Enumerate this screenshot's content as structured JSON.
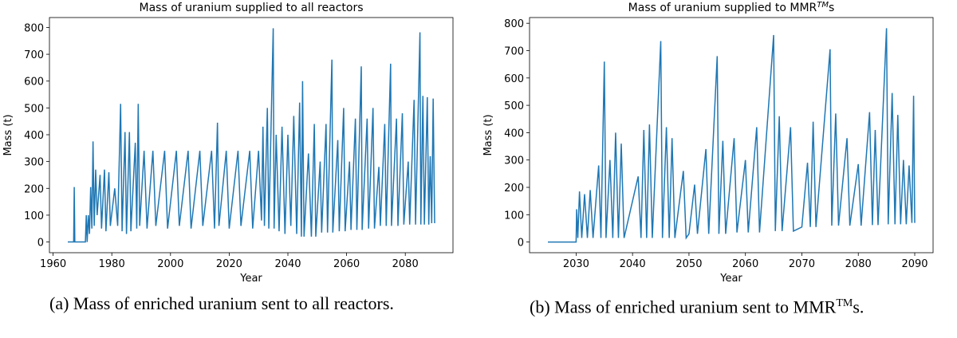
{
  "chart_data": [
    {
      "type": "line",
      "title": "Mass of uranium supplied to all reactors",
      "xlabel": "Year",
      "ylabel": "Mass (t)",
      "xlim": [
        1958.75,
        2096.25
      ],
      "ylim": [
        -40,
        837
      ],
      "xticks": [
        1960,
        1980,
        2000,
        2020,
        2040,
        2060,
        2080
      ],
      "yticks": [
        0,
        100,
        200,
        300,
        400,
        500,
        600,
        700,
        800
      ],
      "x": [
        1965,
        1967,
        1967.2,
        1967.4,
        1971,
        1971.3,
        1971.6,
        1972,
        1972.4,
        1972.8,
        1973.2,
        1973.6,
        1974,
        1974.5,
        1975,
        1976,
        1976.5,
        1977.5,
        1978,
        1979,
        1979.5,
        1981,
        1982,
        1983,
        1983.5,
        1984.5,
        1985,
        1986,
        1986.5,
        1988,
        1988.5,
        1989,
        1989.5,
        1991,
        1992,
        1994,
        1995,
        1998,
        1999,
        2002,
        2003,
        2006,
        2007,
        2010,
        2011,
        2014,
        2015,
        2016,
        2016.5,
        2019,
        2020,
        2023,
        2024,
        2027,
        2028,
        2030,
        2031,
        2031.5,
        2032,
        2033,
        2033.5,
        2035,
        2035.3,
        2036,
        2037,
        2038,
        2039,
        2040,
        2041,
        2042,
        2043,
        2044,
        2044.6,
        2045,
        2045.5,
        2047,
        2048,
        2049,
        2049.5,
        2051,
        2051.5,
        2053,
        2053.5,
        2055,
        2055.3,
        2057,
        2057.5,
        2059,
        2059.5,
        2061,
        2061.5,
        2063,
        2063.5,
        2065,
        2065.3,
        2067,
        2067.5,
        2069,
        2069.5,
        2071,
        2071.5,
        2073,
        2073.5,
        2075,
        2075.3,
        2077,
        2077.5,
        2079,
        2079.5,
        2081,
        2081.5,
        2083,
        2083.5,
        2085,
        2085.3,
        2086,
        2086.5,
        2087.5,
        2088,
        2088.5,
        2089,
        2089.5,
        2090
      ],
      "series": [
        {
          "color": "#1f77b4",
          "values": [
            0,
            0,
            205,
            0,
            0,
            100,
            0,
            100,
            30,
            205,
            50,
            375,
            60,
            270,
            100,
            250,
            50,
            270,
            40,
            260,
            60,
            200,
            60,
            515,
            40,
            410,
            30,
            410,
            40,
            370,
            50,
            515,
            60,
            340,
            50,
            340,
            60,
            340,
            50,
            340,
            60,
            340,
            50,
            340,
            60,
            340,
            50,
            445,
            60,
            340,
            50,
            340,
            60,
            340,
            50,
            340,
            80,
            430,
            60,
            500,
            50,
            797,
            50,
            400,
            40,
            430,
            30,
            400,
            60,
            470,
            30,
            520,
            20,
            600,
            20,
            330,
            20,
            440,
            20,
            300,
            35,
            440,
            35,
            680,
            35,
            380,
            40,
            500,
            40,
            300,
            45,
            460,
            45,
            655,
            45,
            460,
            50,
            500,
            50,
            280,
            60,
            440,
            60,
            665,
            60,
            460,
            60,
            480,
            65,
            300,
            65,
            530,
            65,
            782,
            65,
            545,
            65,
            540,
            65,
            320,
            70,
            535,
            70
          ]
        }
      ]
    },
    {
      "type": "line",
      "title": "Mass of uranium supplied to MMR",
      "title_superscript": "TM",
      "title_end": "s",
      "xlabel": "Year",
      "ylabel": "Mass (t)",
      "xlim": [
        2021.75,
        2093.25
      ],
      "ylim": [
        -39,
        821
      ],
      "xticks": [
        2030,
        2040,
        2050,
        2060,
        2070,
        2080,
        2090
      ],
      "yticks": [
        0,
        100,
        200,
        300,
        400,
        500,
        600,
        700,
        800
      ],
      "x": [
        2025,
        2030,
        2030.1,
        2030.3,
        2030.6,
        2031,
        2031.5,
        2032,
        2032.5,
        2033,
        2034,
        2034.4,
        2035,
        2035.3,
        2036,
        2036.5,
        2037,
        2037.5,
        2038,
        2038.5,
        2041,
        2041.5,
        2042,
        2042.5,
        2043,
        2043.5,
        2045,
        2045.3,
        2046,
        2046.5,
        2047,
        2047.5,
        2049,
        2049.5,
        2050,
        2051,
        2051.5,
        2053,
        2053.5,
        2055,
        2055.3,
        2056,
        2056.5,
        2058,
        2058.5,
        2060,
        2060.5,
        2062,
        2062.5,
        2065,
        2065.3,
        2066,
        2066.5,
        2068,
        2068.5,
        2070,
        2071,
        2071.5,
        2072,
        2072.5,
        2075,
        2075.3,
        2076,
        2076.5,
        2078,
        2078.5,
        2080,
        2080.5,
        2082,
        2082.5,
        2083,
        2083.5,
        2085,
        2085.3,
        2086,
        2086.5,
        2087,
        2087.5,
        2088,
        2088.5,
        2089,
        2089.5,
        2089.8,
        2090
      ],
      "series": [
        {
          "color": "#1f77b4",
          "values": [
            0,
            0,
            120,
            15,
            185,
            15,
            175,
            15,
            190,
            15,
            280,
            15,
            660,
            15,
            300,
            15,
            400,
            15,
            360,
            15,
            240,
            15,
            410,
            15,
            430,
            15,
            735,
            15,
            420,
            15,
            380,
            15,
            260,
            15,
            30,
            210,
            30,
            340,
            30,
            680,
            30,
            370,
            30,
            380,
            35,
            300,
            35,
            420,
            35,
            757,
            40,
            460,
            40,
            420,
            40,
            55,
            290,
            55,
            440,
            55,
            705,
            60,
            470,
            60,
            380,
            60,
            285,
            60,
            475,
            62,
            410,
            62,
            782,
            65,
            545,
            65,
            465,
            65,
            300,
            65,
            280,
            70,
            535,
            70
          ]
        }
      ]
    }
  ],
  "captions": [
    {
      "text": "(a) Mass of enriched uranium sent to all reactors."
    },
    {
      "text": "(b) Mass of enriched uranium sent to MMR",
      "superscript": "TM",
      "end": "s."
    }
  ]
}
